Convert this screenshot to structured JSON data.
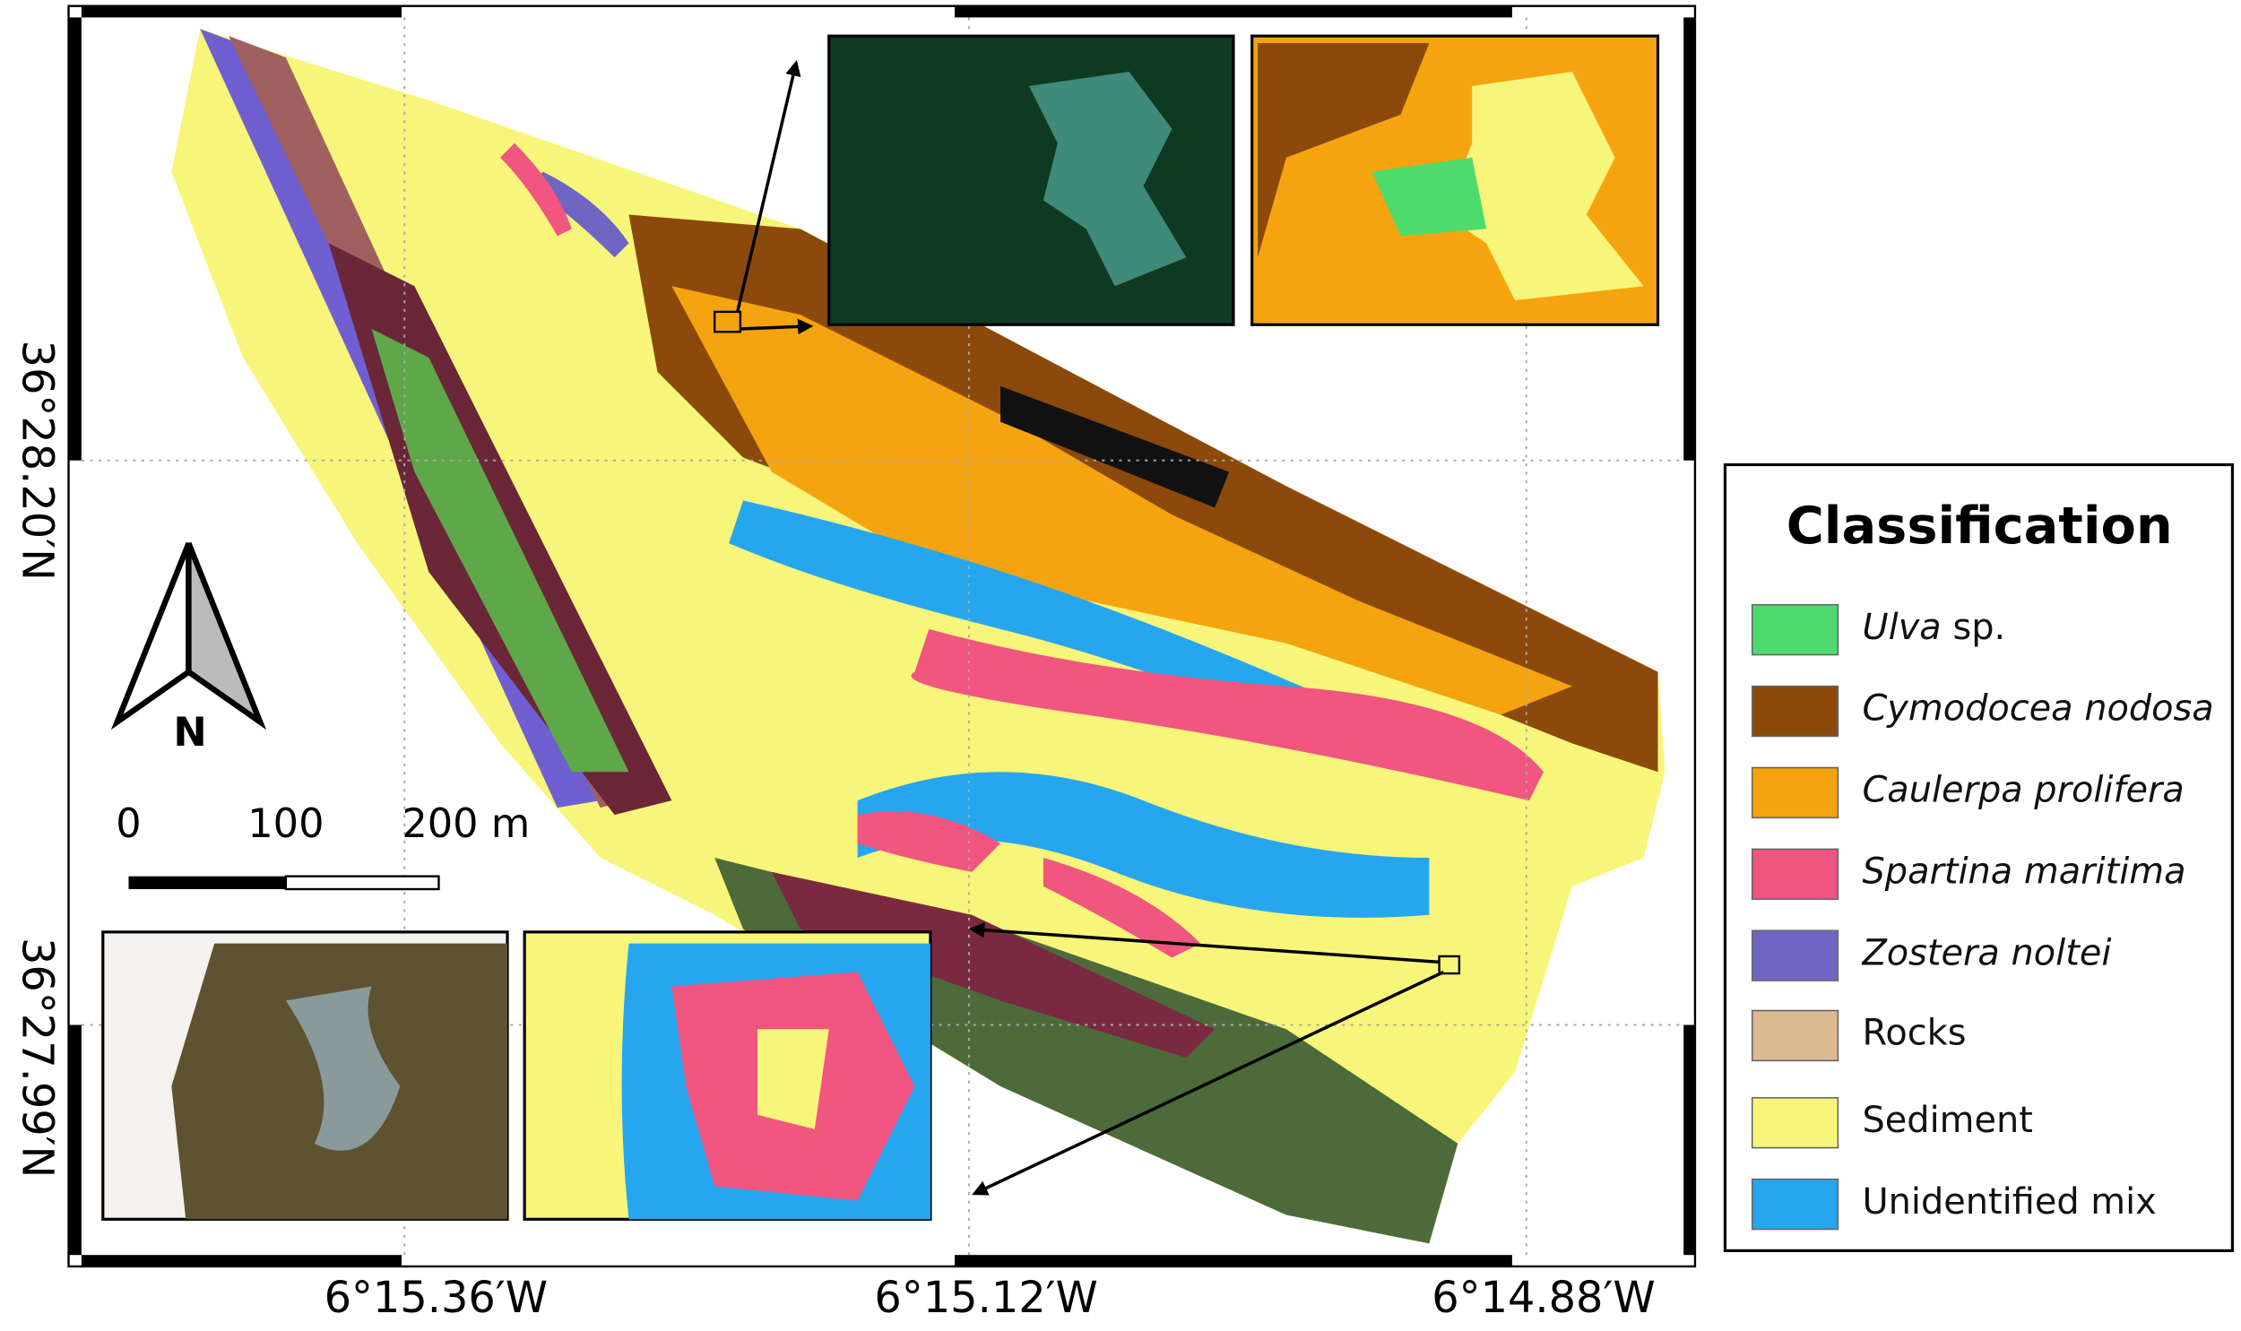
{
  "map": {
    "lat_labels": [
      "36°28.20′N",
      "36°27.99′N"
    ],
    "lon_labels": [
      "6°15.36′W",
      "6°15.12′W",
      "6°14.88′W"
    ],
    "north_label": "N",
    "scale_bar": {
      "labels": [
        "0",
        "100",
        "200 m"
      ]
    },
    "legend": {
      "title": "Classification",
      "entries": [
        {
          "italic": "Ulva",
          "plain": "sp.",
          "color": "#4ddb6e"
        },
        {
          "italic": "Cymodocea nodosa",
          "color": "#8b4a0c"
        },
        {
          "italic": "Caulerpa prolifera",
          "color": "#f5a40f"
        },
        {
          "italic": "Spartina maritima",
          "color": "#f0567f"
        },
        {
          "italic": "Zostera noltei",
          "color": "#6f66c4"
        },
        {
          "plain": "Rocks",
          "color": "#dcbb92"
        },
        {
          "plain": "Sediment",
          "color": "#f8f67a"
        },
        {
          "plain": "Unidentified mix",
          "color": "#27a6f0"
        }
      ]
    }
  }
}
